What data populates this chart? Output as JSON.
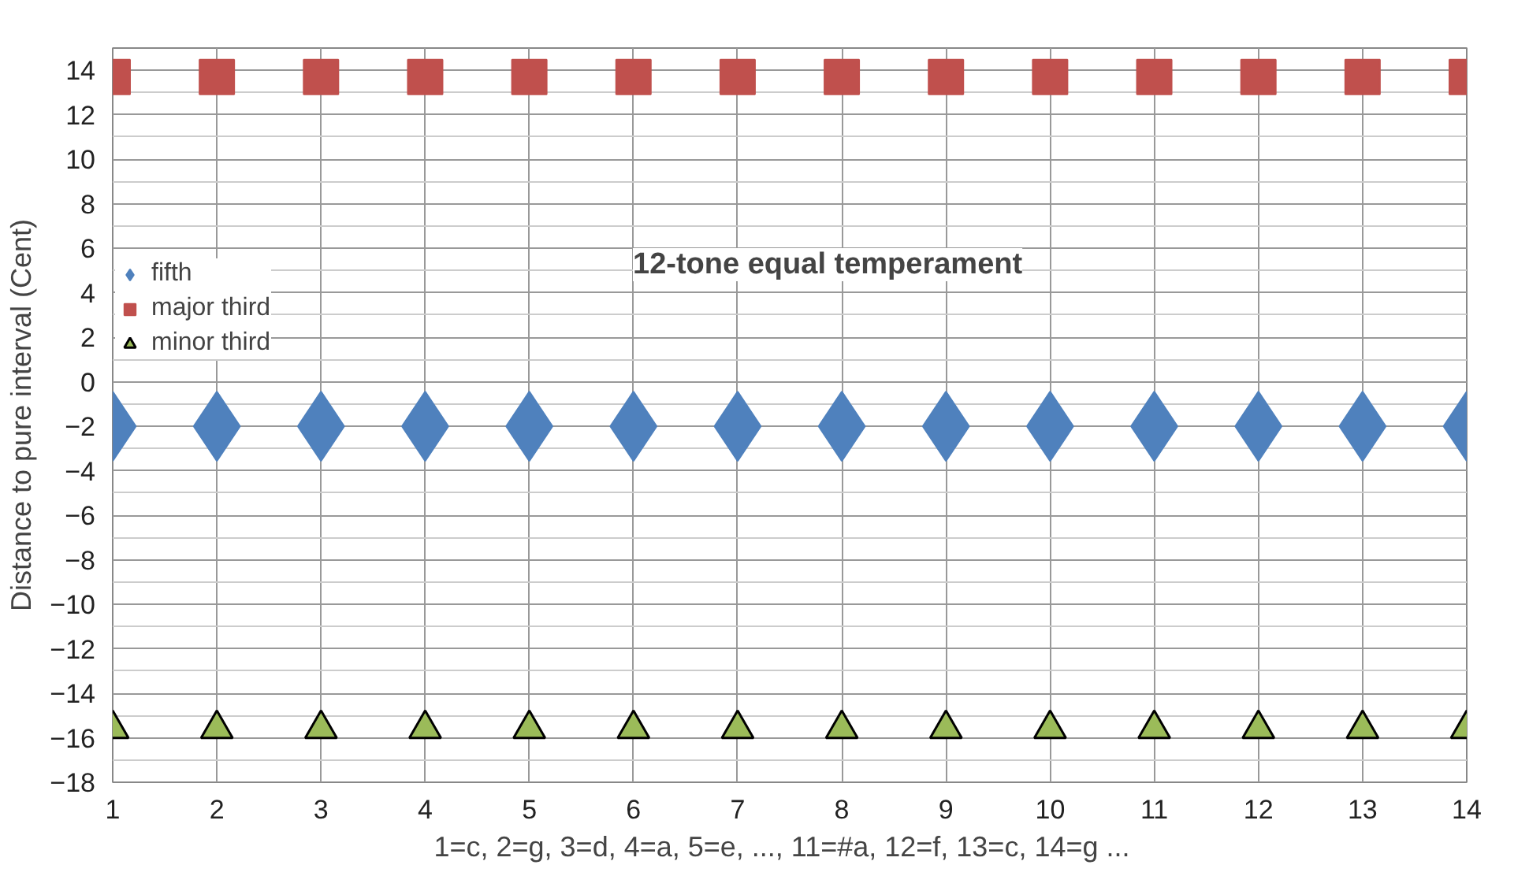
{
  "chart_data": {
    "type": "scatter",
    "x": [
      1,
      2,
      3,
      4,
      5,
      6,
      7,
      8,
      9,
      10,
      11,
      12,
      13,
      14
    ],
    "series": [
      {
        "name": "fifth",
        "color": "#4f81bd",
        "marker": "diamond",
        "values": [
          -2,
          -2,
          -2,
          -2,
          -2,
          -2,
          -2,
          -2,
          -2,
          -2,
          -2,
          -2,
          -2,
          -2
        ]
      },
      {
        "name": "major third",
        "color": "#c0504d",
        "marker": "square",
        "values": [
          13.7,
          13.7,
          13.7,
          13.7,
          13.7,
          13.7,
          13.7,
          13.7,
          13.7,
          13.7,
          13.7,
          13.7,
          13.7,
          13.7
        ]
      },
      {
        "name": "minor third",
        "color": "#9bbb59",
        "marker": "triangle",
        "values": [
          -15.6,
          -15.6,
          -15.6,
          -15.6,
          -15.6,
          -15.6,
          -15.6,
          -15.6,
          -15.6,
          -15.6,
          -15.6,
          -15.6,
          -15.6,
          -15.6
        ]
      }
    ],
    "xlabel": "1=c, 2=g, 3=d, 4=a,  5=e, ...,  11=#a, 12=f, 13=c, 14=g ...",
    "ylabel": "Distance to pure interval (Cent)",
    "annotations": [
      "12-tone equal temperament"
    ],
    "xlim": [
      1,
      14
    ],
    "xticks": [
      1,
      2,
      3,
      4,
      5,
      6,
      7,
      8,
      9,
      10,
      11,
      12,
      13,
      14
    ],
    "ylim": [
      -18,
      15
    ],
    "yticks": [
      -18,
      -16,
      -14,
      -12,
      -10,
      -8,
      -6,
      -4,
      -2,
      0,
      2,
      4,
      6,
      8,
      10,
      12,
      14
    ],
    "grid": true,
    "legend": "top left"
  }
}
